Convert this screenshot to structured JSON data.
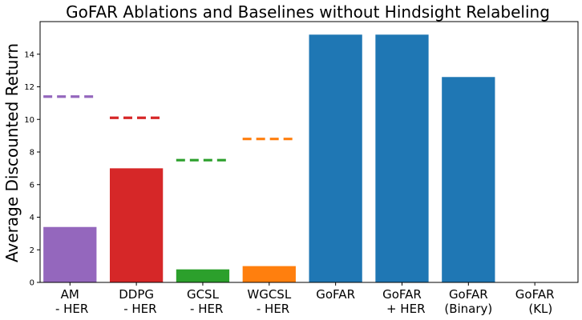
{
  "chart_data": {
    "type": "bar",
    "title": "GoFAR Ablations and Baselines without Hindsight Relabeling",
    "xlabel": "",
    "ylabel": "Average Discounted Return",
    "ylim": [
      0,
      16
    ],
    "yticks": [
      0,
      2,
      4,
      6,
      8,
      10,
      12,
      14
    ],
    "grid": false,
    "categories": [
      [
        "AM",
        " - HER"
      ],
      [
        "DDPG",
        "  - HER"
      ],
      [
        "GCSL",
        "  - HER"
      ],
      [
        "WGCSL",
        "  - HER"
      ],
      [
        "GoFAR"
      ],
      [
        "GoFAR",
        "  + HER"
      ],
      [
        "GoFAR",
        "(Binary)"
      ],
      [
        "GoFAR",
        "   (KL)"
      ]
    ],
    "values": [
      3.4,
      7.0,
      0.8,
      1.0,
      15.2,
      15.2,
      12.6,
      0
    ],
    "bar_colors": [
      "#9467bd",
      "#d62728",
      "#2ca02c",
      "#ff7f0e",
      "#1f77b4",
      "#1f77b4",
      "#1f77b4",
      "#1f77b4"
    ],
    "reference_lines": {
      "style": "dashed",
      "values": [
        11.4,
        10.1,
        7.5,
        8.8,
        null,
        null,
        null,
        null
      ],
      "colors": [
        "#9467bd",
        "#d62728",
        "#2ca02c",
        "#ff7f0e",
        null,
        null,
        null,
        null
      ]
    }
  }
}
